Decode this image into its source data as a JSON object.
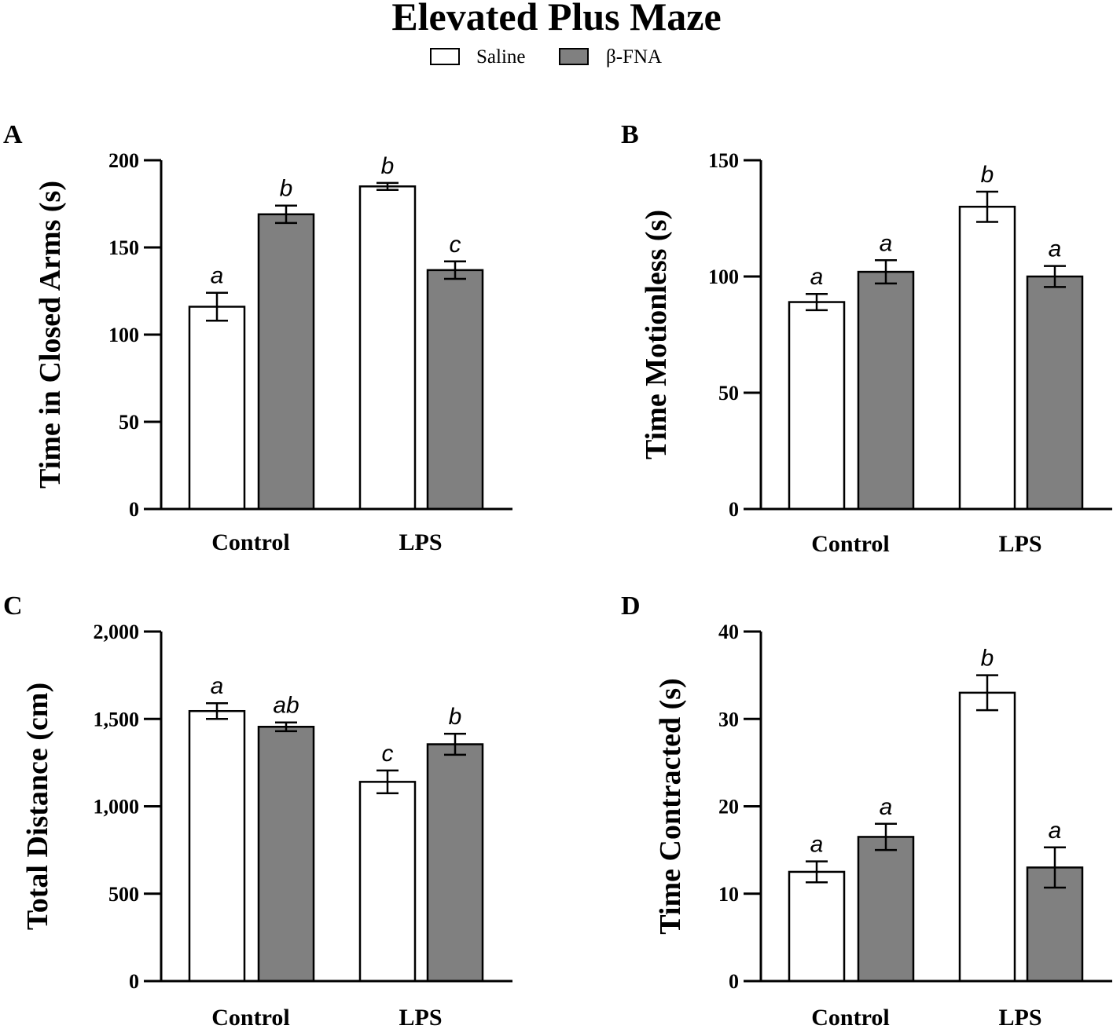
{
  "figure": {
    "title": "Elevated Plus Maze",
    "legend": [
      {
        "label": "Saline",
        "color": "#ffffff"
      },
      {
        "label": "β-FNA",
        "color": "#808080"
      }
    ]
  },
  "chart_data": [
    {
      "panel": "A",
      "type": "bar",
      "title": "",
      "ylabel": "Time in Closed Arms (s)",
      "xlabel": "",
      "categories": [
        "Control",
        "LPS"
      ],
      "ylim": [
        0,
        200
      ],
      "yticks": [
        0,
        50,
        100,
        150,
        200
      ],
      "ytick_labels": [
        "0",
        "50",
        "100",
        "150",
        "200"
      ],
      "series": [
        {
          "name": "Saline",
          "color": "#ffffff",
          "values": [
            116,
            185
          ],
          "errors": [
            8,
            2
          ],
          "sig": [
            "a",
            "b"
          ]
        },
        {
          "name": "β-FNA",
          "color": "#808080",
          "values": [
            169,
            137
          ],
          "errors": [
            5,
            5
          ],
          "sig": [
            "b",
            "c"
          ]
        }
      ]
    },
    {
      "panel": "B",
      "type": "bar",
      "title": "",
      "ylabel": "Time Motionless (s)",
      "xlabel": "",
      "categories": [
        "Control",
        "LPS"
      ],
      "ylim": [
        0,
        150
      ],
      "yticks": [
        0,
        50,
        100,
        150
      ],
      "ytick_labels": [
        "0",
        "50",
        "100",
        "150"
      ],
      "series": [
        {
          "name": "Saline",
          "color": "#ffffff",
          "values": [
            89,
            130
          ],
          "errors": [
            3.5,
            6.5
          ],
          "sig": [
            "a",
            "b"
          ]
        },
        {
          "name": "β-FNA",
          "color": "#808080",
          "values": [
            102,
            100
          ],
          "errors": [
            5,
            4.5
          ],
          "sig": [
            "a",
            "a"
          ]
        }
      ]
    },
    {
      "panel": "C",
      "type": "bar",
      "title": "",
      "ylabel": "Total Distance (cm)",
      "xlabel": "",
      "categories": [
        "Control",
        "LPS"
      ],
      "ylim": [
        0,
        2000
      ],
      "yticks": [
        0,
        500,
        1000,
        1500,
        2000
      ],
      "ytick_labels": [
        "0",
        "500",
        "1,000",
        "1,500",
        "2,000"
      ],
      "series": [
        {
          "name": "Saline",
          "color": "#ffffff",
          "values": [
            1545,
            1140
          ],
          "errors": [
            45,
            65
          ],
          "sig": [
            "a",
            "c"
          ]
        },
        {
          "name": "β-FNA",
          "color": "#808080",
          "values": [
            1455,
            1355
          ],
          "errors": [
            25,
            60
          ],
          "sig": [
            "ab",
            "b"
          ]
        }
      ]
    },
    {
      "panel": "D",
      "type": "bar",
      "title": "",
      "ylabel": "Time Contracted (s)",
      "xlabel": "",
      "categories": [
        "Control",
        "LPS"
      ],
      "ylim": [
        0,
        40
      ],
      "yticks": [
        0,
        10,
        20,
        30,
        40
      ],
      "ytick_labels": [
        "0",
        "10",
        "20",
        "30",
        "40"
      ],
      "series": [
        {
          "name": "Saline",
          "color": "#ffffff",
          "values": [
            12.5,
            33
          ],
          "errors": [
            1.2,
            2
          ],
          "sig": [
            "a",
            "b"
          ]
        },
        {
          "name": "β-FNA",
          "color": "#808080",
          "values": [
            16.5,
            13
          ],
          "errors": [
            1.5,
            2.3
          ],
          "sig": [
            "a",
            "a"
          ]
        }
      ]
    }
  ]
}
